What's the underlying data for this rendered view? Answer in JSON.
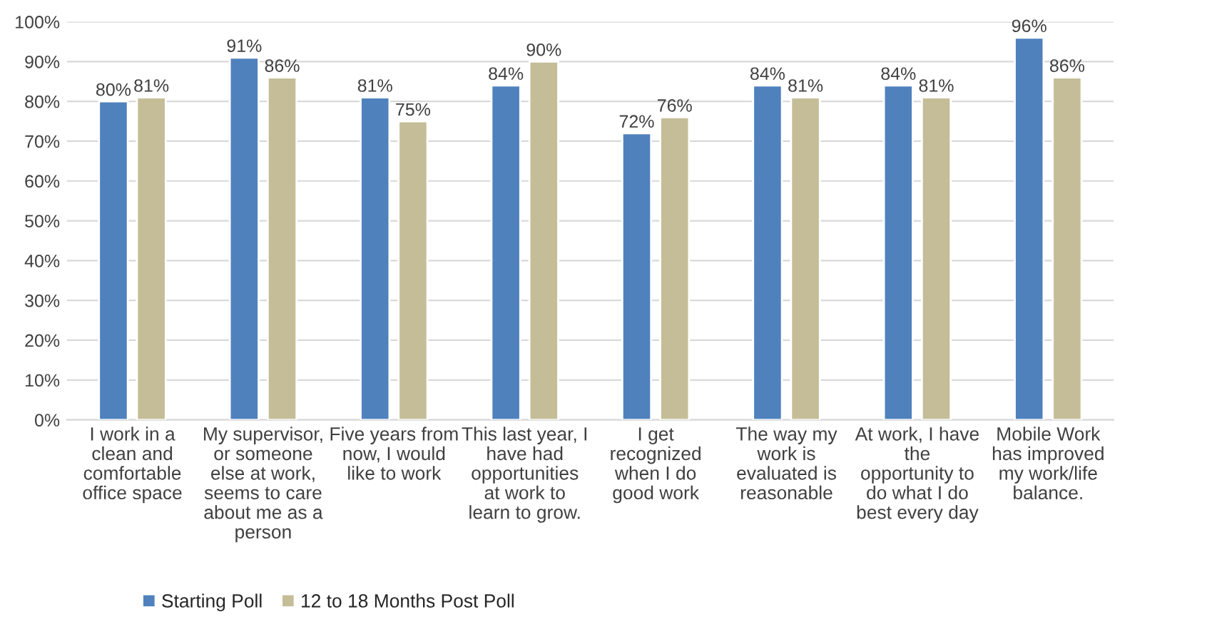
{
  "chart_data": {
    "type": "bar",
    "categories": [
      "I work in a\nclean and\ncomfortable\noffice space",
      "My supervisor,\nor someone\nelse at work,\nseems to care\nabout me as a\nperson",
      "Five years from\nnow, I would\nlike to work",
      "This last year, I\nhave had\nopportunities\nat work to\nlearn to grow.",
      "I get\nrecognized\nwhen I do\ngood work",
      "The way my\nwork is\nevaluated is\nreasonable",
      "At work, I have\nthe\nopportunity to\ndo what I do\nbest every day",
      "Mobile Work\nhas improved\nmy work/life\nbalance."
    ],
    "series": [
      {
        "name": "Starting Poll",
        "color": "#4f81bd",
        "values": [
          80,
          91,
          81,
          84,
          72,
          84,
          84,
          96
        ]
      },
      {
        "name": "12 to 18 Months Post Poll",
        "color": "#c4bd97",
        "values": [
          81,
          86,
          75,
          90,
          76,
          81,
          81,
          86
        ]
      }
    ],
    "ylim": [
      0,
      100
    ],
    "yticks": [
      {
        "value": 0,
        "label": "0%"
      },
      {
        "value": 10,
        "label": "10%"
      },
      {
        "value": 20,
        "label": "20%"
      },
      {
        "value": 30,
        "label": "30%"
      },
      {
        "value": 40,
        "label": "40%"
      },
      {
        "value": 50,
        "label": "50%"
      },
      {
        "value": 60,
        "label": "60%"
      },
      {
        "value": 70,
        "label": "70%"
      },
      {
        "value": 80,
        "label": "80%"
      },
      {
        "value": 90,
        "label": "90%"
      },
      {
        "value": 100,
        "label": "100%"
      }
    ],
    "value_labels": [
      [
        "80%",
        "91%",
        "81%",
        "84%",
        "72%",
        "84%",
        "84%",
        "96%"
      ],
      [
        "81%",
        "86%",
        "75%",
        "90%",
        "76%",
        "81%",
        "81%",
        "86%"
      ]
    ],
    "grid": "y",
    "legend": "bottom"
  }
}
